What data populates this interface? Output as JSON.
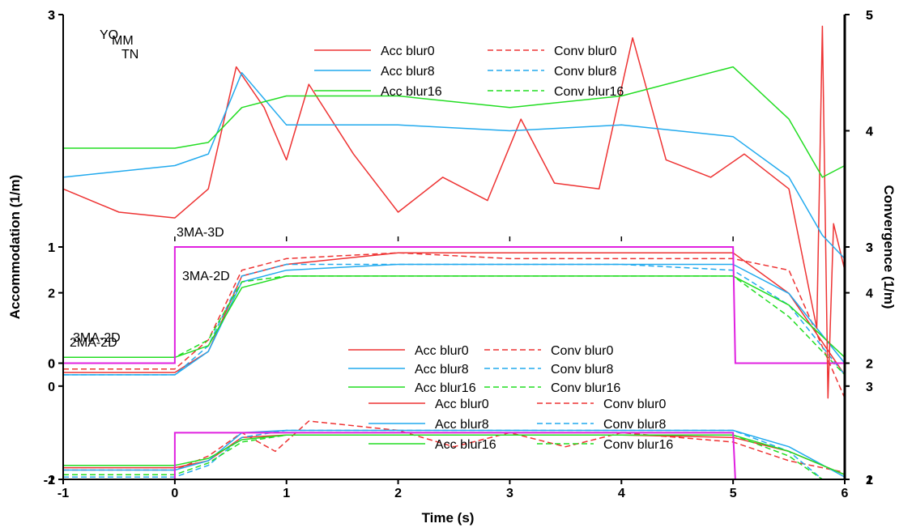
{
  "chart_data": {
    "type": "line",
    "xlabel": "Time (s)",
    "ylabel": "Accommodation (1/m)",
    "y2label": "Convergence (1/m)",
    "xlim": [
      -1,
      6
    ],
    "x_ticks": [
      "-1",
      "0",
      "1",
      "2",
      "3",
      "4",
      "5",
      "6"
    ],
    "panel_labels": [
      "YO",
      "MM",
      "TN"
    ],
    "panels": [
      {
        "ylim": [
          -2,
          3
        ],
        "left_ticks": [
          {
            "v": -2,
            "label": "-2"
          },
          {
            "v": 0,
            "label": "0"
          },
          {
            "v": 2,
            "label": "2"
          }
        ],
        "right_ticks": [
          {
            "v": -2,
            "label": "2"
          },
          {
            "v": 0,
            "label": "3"
          },
          {
            "v": 2,
            "label": "4"
          }
        ],
        "step": {
          "from": -2,
          "to": -1,
          "t_on": 0,
          "t_off": 5
        },
        "step_labels": [
          "2MA-2D",
          "3MA-2D"
        ],
        "legend": [
          "Acc blur0",
          "Conv blur0",
          "Acc blur8",
          "Conv blur8",
          "Acc blur16",
          "Conv blur16"
        ],
        "series": [
          {
            "name": "Acc blur0",
            "color": "#ee3333",
            "dashed": false,
            "x": [
              -1,
              0,
              0.3,
              0.6,
              1,
              2,
              3,
              4,
              5,
              5.5,
              6
            ],
            "y": [
              -1.75,
              -1.75,
              -1.6,
              -1.1,
              -1.05,
              -1.05,
              -1.05,
              -1.05,
              -1.1,
              -1.4,
              -1.9
            ]
          },
          {
            "name": "Conv blur0",
            "color": "#ee3333",
            "dashed": true,
            "x": [
              -1,
              0,
              0.3,
              0.6,
              0.9,
              1.2,
              2,
              2.5,
              3,
              3.5,
              4,
              5,
              5.5,
              6
            ],
            "y": [
              -1.8,
              -1.8,
              -1.5,
              -1.0,
              -1.4,
              -0.75,
              -0.95,
              -1.3,
              -1.0,
              -1.3,
              -1.0,
              -1.2,
              -1.6,
              -1.85
            ]
          },
          {
            "name": "Acc blur8",
            "color": "#22aaee",
            "dashed": false,
            "x": [
              -1,
              0,
              0.3,
              0.6,
              1,
              2,
              3,
              4,
              5,
              5.5,
              6
            ],
            "y": [
              -1.8,
              -1.8,
              -1.6,
              -1.0,
              -0.95,
              -0.95,
              -0.95,
              -0.95,
              -0.95,
              -1.3,
              -1.95
            ]
          },
          {
            "name": "Conv blur8",
            "color": "#22aaee",
            "dashed": true,
            "x": [
              -1,
              0,
              0.3,
              0.6,
              1,
              2,
              3,
              4,
              5,
              5.5,
              5.8,
              6
            ],
            "y": [
              -1.95,
              -1.95,
              -1.7,
              -1.1,
              -0.95,
              -0.95,
              -0.95,
              -0.95,
              -0.95,
              -1.4,
              -3.0,
              -3.0
            ]
          },
          {
            "name": "Acc blur16",
            "color": "#22dd22",
            "dashed": false,
            "x": [
              -1,
              0,
              0.3,
              0.6,
              1,
              2,
              3,
              4,
              5,
              5.5,
              6
            ],
            "y": [
              -1.7,
              -1.7,
              -1.55,
              -1.15,
              -1.05,
              -1.05,
              -1.05,
              -1.05,
              -1.05,
              -1.4,
              -1.9
            ]
          },
          {
            "name": "Conv blur16",
            "color": "#22dd22",
            "dashed": true,
            "x": [
              -1,
              0,
              0.3,
              0.6,
              1,
              2,
              3,
              4,
              5,
              5.5,
              5.8,
              6
            ],
            "y": [
              -1.9,
              -1.9,
              -1.65,
              -1.2,
              -1.05,
              -1.05,
              -1.05,
              -1.05,
              -1.05,
              -1.5,
              -3.0,
              -3.0
            ]
          }
        ]
      },
      {
        "ylim": [
          -1,
          3
        ],
        "left_ticks": [
          {
            "v": -1,
            "label": "-1"
          },
          {
            "v": 0,
            "label": "0"
          },
          {
            "v": 1,
            "label": "1"
          },
          {
            "v": 3,
            "label": "3"
          }
        ],
        "right_ticks": [
          {
            "v": -1,
            "label": "1"
          },
          {
            "v": 0,
            "label": "2"
          },
          {
            "v": 1,
            "label": "3"
          },
          {
            "v": 2,
            "label": "4"
          },
          {
            "v": 3,
            "label": "5"
          }
        ],
        "step": {
          "from": 0,
          "to": 1,
          "t_on": 0,
          "t_off": 5
        },
        "step_labels": [
          "3MA-2D",
          "3MA-3D"
        ],
        "legend": [
          "Acc blur0",
          "Conv blur0",
          "Acc blur8",
          "Conv blur8",
          "Acc blur16",
          "Conv blur16"
        ],
        "series": [
          {
            "name": "Acc blur0",
            "color": "#ee3333",
            "dashed": false,
            "x": [
              -1,
              0,
              0.3,
              0.6,
              1,
              2,
              3,
              4,
              5,
              5.5,
              6
            ],
            "y": [
              -0.08,
              -0.08,
              0.1,
              0.75,
              0.85,
              0.95,
              0.95,
              0.95,
              0.95,
              0.6,
              -0.1
            ]
          },
          {
            "name": "Conv blur0",
            "color": "#ee3333",
            "dashed": true,
            "x": [
              -1,
              0,
              0.3,
              0.6,
              1,
              2,
              3,
              4,
              5,
              5.5,
              6
            ],
            "y": [
              -0.05,
              -0.05,
              0.2,
              0.8,
              0.9,
              0.95,
              0.9,
              0.9,
              0.9,
              0.8,
              -0.3
            ]
          },
          {
            "name": "Acc blur8",
            "color": "#22aaee",
            "dashed": false,
            "x": [
              -1,
              0,
              0.3,
              0.6,
              1,
              2,
              3,
              4,
              5,
              5.5,
              6
            ],
            "y": [
              -0.1,
              -0.1,
              0.1,
              0.7,
              0.8,
              0.85,
              0.85,
              0.85,
              0.85,
              0.6,
              0.0
            ]
          },
          {
            "name": "Conv blur8",
            "color": "#22aaee",
            "dashed": true,
            "x": [
              -1,
              0,
              0.3,
              0.6,
              1,
              2,
              3,
              4,
              5,
              5.5,
              6
            ],
            "y": [
              -0.1,
              -0.1,
              0.15,
              0.75,
              0.85,
              0.85,
              0.85,
              0.85,
              0.8,
              0.5,
              -0.1
            ]
          },
          {
            "name": "Acc blur16",
            "color": "#22dd22",
            "dashed": false,
            "x": [
              -1,
              0,
              0.3,
              0.6,
              1,
              2,
              3,
              4,
              5,
              5.5,
              6
            ],
            "y": [
              0.05,
              0.05,
              0.15,
              0.65,
              0.75,
              0.75,
              0.75,
              0.75,
              0.75,
              0.5,
              0.05
            ]
          },
          {
            "name": "Conv blur16",
            "color": "#22dd22",
            "dashed": true,
            "x": [
              -1,
              0,
              0.3,
              0.6,
              1,
              2,
              3,
              4,
              5,
              5.5,
              6
            ],
            "y": [
              0.05,
              0.05,
              0.2,
              0.7,
              0.75,
              0.75,
              0.75,
              0.75,
              0.75,
              0.4,
              -0.1
            ]
          }
        ]
      },
      {
        "ylim": [
          -1,
          3
        ],
        "left_ticks": [
          {
            "v": 0,
            "label": "0"
          },
          {
            "v": 1,
            "label": "1"
          },
          {
            "v": 3,
            "label": "3"
          }
        ],
        "right_ticks": [
          {
            "v": -1,
            "label": "1"
          },
          {
            "v": 0,
            "label": "2"
          },
          {
            "v": 1,
            "label": "3"
          },
          {
            "v": 2,
            "label": "4"
          },
          {
            "v": 3,
            "label": "5"
          }
        ],
        "step": null,
        "step_labels": [],
        "legend": [
          "Acc blur0",
          "Conv blur0",
          "Acc blur8",
          "Conv blur8",
          "Acc blur16",
          "Conv blur16"
        ],
        "series": [
          {
            "name": "Acc blur0",
            "color": "#ee3333",
            "dashed": false,
            "x": [
              -1,
              -0.5,
              0,
              0.3,
              0.55,
              0.8,
              1,
              1.2,
              1.6,
              2,
              2.4,
              2.8,
              3.1,
              3.4,
              3.8,
              4.1,
              4.4,
              4.8,
              5.1,
              5.5,
              5.75,
              5.8,
              5.85,
              5.9,
              6
            ],
            "y": [
              1.5,
              1.3,
              1.25,
              1.5,
              2.55,
              2.2,
              1.75,
              2.4,
              1.8,
              1.3,
              1.6,
              1.4,
              2.1,
              1.55,
              1.5,
              2.8,
              1.75,
              1.6,
              1.8,
              1.5,
              0.3,
              2.9,
              -0.3,
              1.2,
              0.8
            ]
          },
          {
            "name": "Acc blur8",
            "color": "#22aaee",
            "dashed": false,
            "x": [
              -1,
              0,
              0.3,
              0.6,
              1,
              2,
              3,
              4,
              5,
              5.5,
              5.8,
              6
            ],
            "y": [
              1.6,
              1.7,
              1.8,
              2.5,
              2.05,
              2.05,
              2.0,
              2.05,
              1.95,
              1.6,
              1.1,
              0.9
            ]
          },
          {
            "name": "Acc blur16",
            "color": "#22dd22",
            "dashed": false,
            "x": [
              -1,
              0,
              0.3,
              0.6,
              1,
              2,
              3,
              4,
              5,
              5.5,
              5.8,
              6
            ],
            "y": [
              1.85,
              1.85,
              1.9,
              2.2,
              2.3,
              2.3,
              2.2,
              2.3,
              2.55,
              2.1,
              1.6,
              1.7
            ]
          }
        ]
      }
    ]
  }
}
